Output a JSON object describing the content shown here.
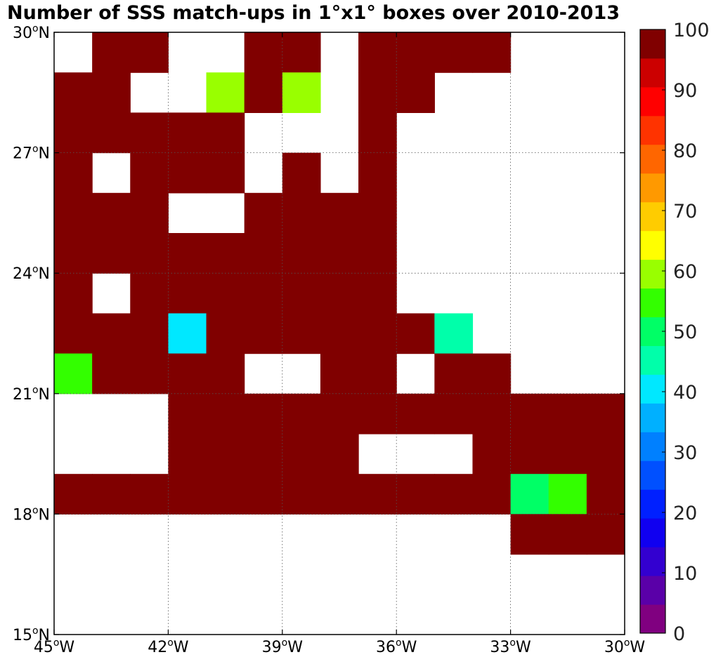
{
  "chart_data": {
    "type": "heatmap",
    "title": "Number of SSS match-ups in 1°x1° boxes over 2010-2013",
    "x_axis": {
      "ticks": [
        -45,
        -42,
        -39,
        -36,
        -33,
        -30
      ],
      "tick_labels": [
        {
          "deg": "45",
          "sup": "o",
          "hemi": "W"
        },
        {
          "deg": "42",
          "sup": "o",
          "hemi": "W"
        },
        {
          "deg": "39",
          "sup": "o",
          "hemi": "W"
        },
        {
          "deg": "36",
          "sup": "o",
          "hemi": "W"
        },
        {
          "deg": "33",
          "sup": "o",
          "hemi": "W"
        },
        {
          "deg": "30",
          "sup": "o",
          "hemi": "W"
        }
      ],
      "range": [
        -45,
        -30
      ]
    },
    "y_axis": {
      "ticks": [
        30,
        27,
        24,
        21,
        18,
        15
      ],
      "tick_labels": [
        {
          "deg": "30",
          "sup": "o",
          "hemi": "N"
        },
        {
          "deg": "27",
          "sup": "o",
          "hemi": "N"
        },
        {
          "deg": "24",
          "sup": "o",
          "hemi": "N"
        },
        {
          "deg": "21",
          "sup": "o",
          "hemi": "N"
        },
        {
          "deg": "18",
          "sup": "o",
          "hemi": "N"
        },
        {
          "deg": "15",
          "sup": "o",
          "hemi": "N"
        }
      ],
      "range": [
        15,
        30
      ]
    },
    "grid": "dotted",
    "cell_size_deg": 1,
    "cells_note": "each cell: [lon_west_edge, lat_south_edge, value]; value 100 means >=100 (dark red)",
    "cells": [
      [
        -44,
        29,
        100
      ],
      [
        -43,
        29,
        100
      ],
      [
        -40,
        29,
        100
      ],
      [
        -39,
        29,
        100
      ],
      [
        -37,
        29,
        100
      ],
      [
        -36,
        29,
        100
      ],
      [
        -35,
        29,
        100
      ],
      [
        -34,
        29,
        100
      ],
      [
        -45,
        28,
        100
      ],
      [
        -44,
        28,
        100
      ],
      [
        -41,
        28,
        62
      ],
      [
        -40,
        28,
        100
      ],
      [
        -39,
        28,
        62
      ],
      [
        -37,
        28,
        100
      ],
      [
        -36,
        28,
        100
      ],
      [
        -45,
        27,
        100
      ],
      [
        -44,
        27,
        100
      ],
      [
        -43,
        27,
        100
      ],
      [
        -42,
        27,
        100
      ],
      [
        -41,
        27,
        100
      ],
      [
        -37,
        27,
        100
      ],
      [
        -45,
        26,
        100
      ],
      [
        -43,
        26,
        100
      ],
      [
        -42,
        26,
        100
      ],
      [
        -41,
        26,
        100
      ],
      [
        -39,
        26,
        100
      ],
      [
        -37,
        26,
        100
      ],
      [
        -45,
        25,
        100
      ],
      [
        -44,
        25,
        100
      ],
      [
        -43,
        25,
        100
      ],
      [
        -40,
        25,
        100
      ],
      [
        -39,
        25,
        100
      ],
      [
        -38,
        25,
        100
      ],
      [
        -37,
        25,
        100
      ],
      [
        -45,
        24,
        100
      ],
      [
        -44,
        24,
        100
      ],
      [
        -43,
        24,
        100
      ],
      [
        -42,
        24,
        100
      ],
      [
        -41,
        24,
        100
      ],
      [
        -40,
        24,
        100
      ],
      [
        -39,
        24,
        100
      ],
      [
        -38,
        24,
        100
      ],
      [
        -37,
        24,
        100
      ],
      [
        -45,
        23,
        100
      ],
      [
        -43,
        23,
        100
      ],
      [
        -42,
        23,
        100
      ],
      [
        -41,
        23,
        100
      ],
      [
        -40,
        23,
        100
      ],
      [
        -39,
        23,
        100
      ],
      [
        -38,
        23,
        100
      ],
      [
        -37,
        23,
        100
      ],
      [
        -45,
        22,
        100
      ],
      [
        -44,
        22,
        100
      ],
      [
        -43,
        22,
        100
      ],
      [
        -42,
        22,
        43
      ],
      [
        -41,
        22,
        100
      ],
      [
        -40,
        22,
        100
      ],
      [
        -39,
        22,
        100
      ],
      [
        -38,
        22,
        100
      ],
      [
        -37,
        22,
        100
      ],
      [
        -36,
        22,
        100
      ],
      [
        -35,
        22,
        48
      ],
      [
        -45,
        21,
        57
      ],
      [
        -44,
        21,
        100
      ],
      [
        -43,
        21,
        100
      ],
      [
        -42,
        21,
        100
      ],
      [
        -41,
        21,
        100
      ],
      [
        -38,
        21,
        100
      ],
      [
        -37,
        21,
        100
      ],
      [
        -35,
        21,
        100
      ],
      [
        -34,
        21,
        100
      ],
      [
        -42,
        20,
        100
      ],
      [
        -41,
        20,
        100
      ],
      [
        -40,
        20,
        100
      ],
      [
        -39,
        20,
        100
      ],
      [
        -38,
        20,
        100
      ],
      [
        -37,
        20,
        100
      ],
      [
        -36,
        20,
        100
      ],
      [
        -35,
        20,
        100
      ],
      [
        -34,
        20,
        100
      ],
      [
        -33,
        20,
        100
      ],
      [
        -32,
        20,
        100
      ],
      [
        -31,
        20,
        100
      ],
      [
        -42,
        19,
        100
      ],
      [
        -41,
        19,
        100
      ],
      [
        -40,
        19,
        100
      ],
      [
        -39,
        19,
        100
      ],
      [
        -38,
        19,
        100
      ],
      [
        -34,
        19,
        100
      ],
      [
        -33,
        19,
        100
      ],
      [
        -32,
        19,
        100
      ],
      [
        -31,
        19,
        100
      ],
      [
        -45,
        18,
        100
      ],
      [
        -44,
        18,
        100
      ],
      [
        -43,
        18,
        100
      ],
      [
        -42,
        18,
        100
      ],
      [
        -41,
        18,
        100
      ],
      [
        -40,
        18,
        100
      ],
      [
        -39,
        18,
        100
      ],
      [
        -38,
        18,
        100
      ],
      [
        -37,
        18,
        100
      ],
      [
        -36,
        18,
        100
      ],
      [
        -35,
        18,
        100
      ],
      [
        -34,
        18,
        100
      ],
      [
        -33,
        18,
        52
      ],
      [
        -32,
        18,
        58
      ],
      [
        -31,
        18,
        100
      ],
      [
        -33,
        17,
        100
      ],
      [
        -32,
        17,
        100
      ],
      [
        -31,
        17,
        100
      ]
    ],
    "colorbar": {
      "min": 0,
      "max": 100,
      "tick_values": [
        0,
        10,
        20,
        30,
        40,
        50,
        60,
        70,
        80,
        90,
        100
      ],
      "tick_labels": [
        "0",
        "10",
        "20",
        "30",
        "40",
        "50",
        "60",
        "70",
        "80",
        "90",
        "100"
      ],
      "colors": [
        "#800080",
        "#5a00a8",
        "#3300d0",
        "#1000f0",
        "#0020ff",
        "#0050ff",
        "#0080ff",
        "#00b0ff",
        "#00e8ff",
        "#00ffaa",
        "#00ff66",
        "#33ff00",
        "#99ff00",
        "#ffff00",
        "#ffcc00",
        "#ff9900",
        "#ff6600",
        "#ff3300",
        "#ff0000",
        "#cc0000",
        "#800000"
      ]
    }
  }
}
